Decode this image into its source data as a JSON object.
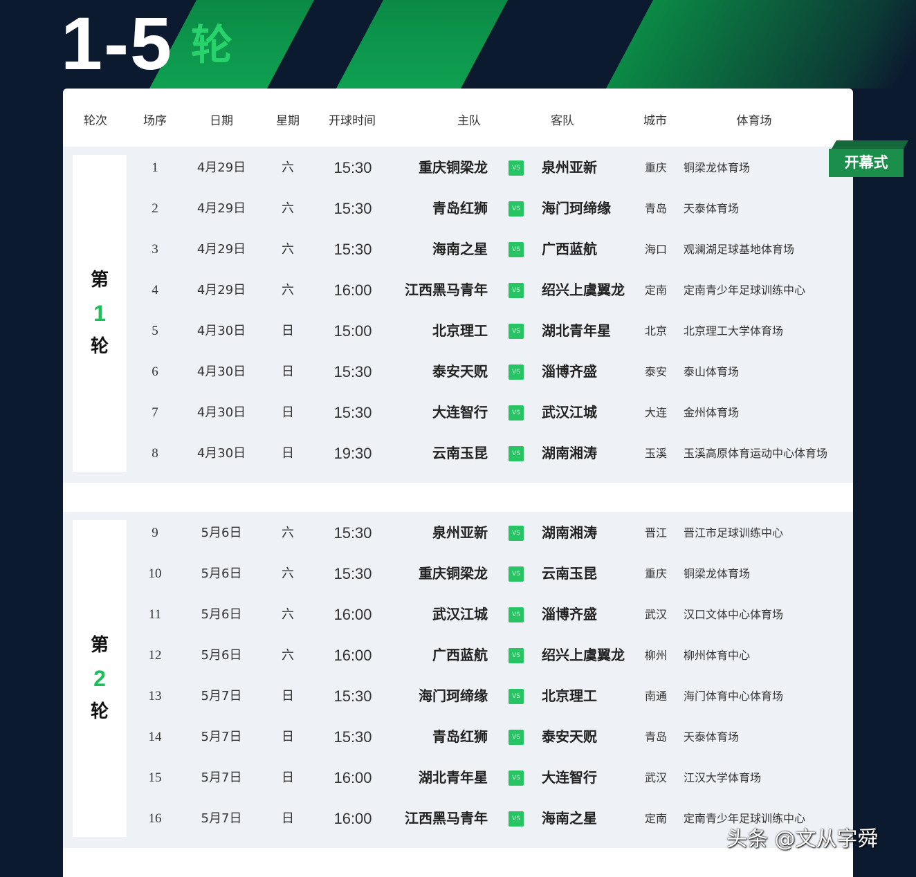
{
  "banner": {
    "range": "1-5",
    "suffix": "轮"
  },
  "colors": {
    "background": "#0c1a30",
    "accent_green": "#1cbf5a",
    "badge_green": "#1b8e4c"
  },
  "header": [
    "轮次",
    "场序",
    "日期",
    "星期",
    "开球时间",
    "主队",
    "客队",
    "城市",
    "体育场"
  ],
  "badge": "开幕式",
  "vs_icon": "vs-icon",
  "rounds": [
    {
      "prefix": "第",
      "number": "1",
      "suffix": "轮",
      "matches": [
        {
          "no": "1",
          "date": "4月29日",
          "weekday": "六",
          "time": "15:30",
          "home": "重庆铜梁龙",
          "away": "泉州亚新",
          "city": "重庆",
          "venue": "铜梁龙体育场"
        },
        {
          "no": "2",
          "date": "4月29日",
          "weekday": "六",
          "time": "15:30",
          "home": "青岛红狮",
          "away": "海门珂缔缘",
          "city": "青岛",
          "venue": "天泰体育场"
        },
        {
          "no": "3",
          "date": "4月29日",
          "weekday": "六",
          "time": "15:30",
          "home": "海南之星",
          "away": "广西蓝航",
          "city": "海口",
          "venue": "观澜湖足球基地体育场"
        },
        {
          "no": "4",
          "date": "4月29日",
          "weekday": "六",
          "time": "16:00",
          "home": "江西黑马青年",
          "away": "绍兴上虞翼龙",
          "city": "定南",
          "venue": "定南青少年足球训练中心"
        },
        {
          "no": "5",
          "date": "4月30日",
          "weekday": "日",
          "time": "15:00",
          "home": "北京理工",
          "away": "湖北青年星",
          "city": "北京",
          "venue": "北京理工大学体育场"
        },
        {
          "no": "6",
          "date": "4月30日",
          "weekday": "日",
          "time": "15:30",
          "home": "泰安天贶",
          "away": "淄博齐盛",
          "city": "泰安",
          "venue": "泰山体育场"
        },
        {
          "no": "7",
          "date": "4月30日",
          "weekday": "日",
          "time": "15:30",
          "home": "大连智行",
          "away": "武汉江城",
          "city": "大连",
          "venue": "金州体育场"
        },
        {
          "no": "8",
          "date": "4月30日",
          "weekday": "日",
          "time": "19:30",
          "home": "云南玉昆",
          "away": "湖南湘涛",
          "city": "玉溪",
          "venue": "玉溪高原体育运动中心体育场"
        }
      ]
    },
    {
      "prefix": "第",
      "number": "2",
      "suffix": "轮",
      "matches": [
        {
          "no": "9",
          "date": "5月6日",
          "weekday": "六",
          "time": "15:30",
          "home": "泉州亚新",
          "away": "湖南湘涛",
          "city": "晋江",
          "venue": "晋江市足球训练中心"
        },
        {
          "no": "10",
          "date": "5月6日",
          "weekday": "六",
          "time": "15:30",
          "home": "重庆铜梁龙",
          "away": "云南玉昆",
          "city": "重庆",
          "venue": "铜梁龙体育场"
        },
        {
          "no": "11",
          "date": "5月6日",
          "weekday": "六",
          "time": "16:00",
          "home": "武汉江城",
          "away": "淄博齐盛",
          "city": "武汉",
          "venue": "汉口文体中心体育场"
        },
        {
          "no": "12",
          "date": "5月6日",
          "weekday": "六",
          "time": "16:00",
          "home": "广西蓝航",
          "away": "绍兴上虞翼龙",
          "city": "柳州",
          "venue": "柳州体育中心"
        },
        {
          "no": "13",
          "date": "5月7日",
          "weekday": "日",
          "time": "15:30",
          "home": "海门珂缔缘",
          "away": "北京理工",
          "city": "南通",
          "venue": "海门体育中心体育场"
        },
        {
          "no": "14",
          "date": "5月7日",
          "weekday": "日",
          "time": "15:30",
          "home": "青岛红狮",
          "away": "泰安天贶",
          "city": "青岛",
          "venue": "天泰体育场"
        },
        {
          "no": "15",
          "date": "5月7日",
          "weekday": "日",
          "time": "16:00",
          "home": "湖北青年星",
          "away": "大连智行",
          "city": "武汉",
          "venue": "江汉大学体育场"
        },
        {
          "no": "16",
          "date": "5月7日",
          "weekday": "日",
          "time": "16:00",
          "home": "江西黑马青年",
          "away": "海南之星",
          "city": "定南",
          "venue": "定南青少年足球训练中心"
        }
      ]
    }
  ],
  "watermark": "头条 @文从字舜"
}
